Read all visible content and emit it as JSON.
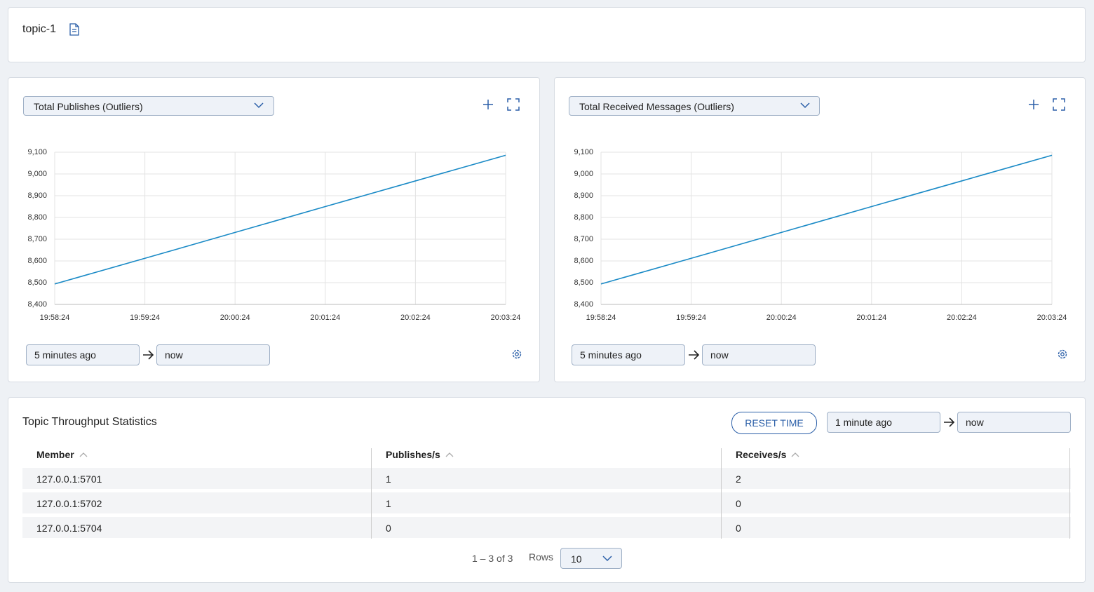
{
  "header": {
    "title": "topic-1"
  },
  "panels": [
    {
      "metric": "Total Publishes (Outliers)",
      "from": "5 minutes ago",
      "to": "now"
    },
    {
      "metric": "Total Received Messages (Outliers)",
      "from": "5 minutes ago",
      "to": "now"
    }
  ],
  "chart_data": [
    {
      "type": "line",
      "x": [
        "19:58:24",
        "19:59:24",
        "20:00:24",
        "20:01:24",
        "20:02:24",
        "20:03:24"
      ],
      "values": [
        8494,
        8612,
        8731,
        8850,
        8968,
        9086
      ],
      "color": "#1a8ac6",
      "ylim": [
        8400,
        9100
      ],
      "yticks": [
        {
          "value": 8400,
          "label": "8,400"
        },
        {
          "value": 8500,
          "label": "8,500"
        },
        {
          "value": 8600,
          "label": "8,600"
        },
        {
          "value": 8700,
          "label": "8,700"
        },
        {
          "value": 8800,
          "label": "8,800"
        },
        {
          "value": 8900,
          "label": "8,900"
        },
        {
          "value": 9000,
          "label": "9,000"
        },
        {
          "value": 9100,
          "label": "9,100"
        }
      ],
      "grid": true
    },
    {
      "type": "line",
      "x": [
        "19:58:24",
        "19:59:24",
        "20:00:24",
        "20:01:24",
        "20:02:24",
        "20:03:24"
      ],
      "values": [
        8494,
        8612,
        8731,
        8850,
        8968,
        9086
      ],
      "color": "#1a8ac6",
      "ylim": [
        8400,
        9100
      ],
      "yticks": [
        {
          "value": 8400,
          "label": "8,400"
        },
        {
          "value": 8500,
          "label": "8,500"
        },
        {
          "value": 8600,
          "label": "8,600"
        },
        {
          "value": 8700,
          "label": "8,700"
        },
        {
          "value": 8800,
          "label": "8,800"
        },
        {
          "value": 8900,
          "label": "8,900"
        },
        {
          "value": 9000,
          "label": "9,000"
        },
        {
          "value": 9100,
          "label": "9,100"
        }
      ],
      "grid": true
    }
  ],
  "table": {
    "title": "Topic Throughput Statistics",
    "reset": "RESET TIME",
    "from": "1 minute ago",
    "to": "now",
    "columns": [
      "Member",
      "Publishes/s",
      "Receives/s"
    ],
    "rows": [
      [
        "127.0.0.1:5701",
        "1",
        "2"
      ],
      [
        "127.0.0.1:5702",
        "1",
        "0"
      ],
      [
        "127.0.0.1:5704",
        "0",
        "0"
      ]
    ],
    "pagination": "1 – 3 of 3",
    "rows_label": "Rows",
    "rows_per_page": "10"
  }
}
